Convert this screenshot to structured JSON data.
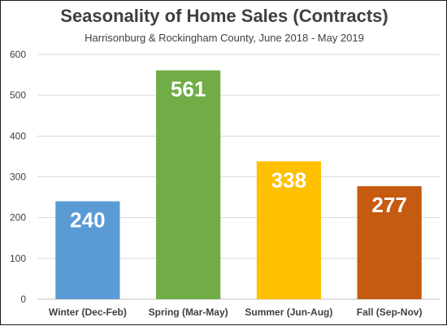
{
  "chart_data": {
    "type": "bar",
    "title": "Seasonality of Home Sales (Contracts)",
    "subtitle": "Harrisonburg & Rockingham County, June 2018 - May 2019",
    "categories": [
      "Winter (Dec-Feb)",
      "Spring (Mar-May)",
      "Summer (Jun-Aug)",
      "Fall (Sep-Nov)"
    ],
    "values": [
      240,
      561,
      338,
      277
    ],
    "colors": [
      "#5b9bd5",
      "#70ad47",
      "#ffc000",
      "#c55a11"
    ],
    "ylim": [
      0,
      600
    ],
    "yticks": [
      "0",
      "100",
      "200",
      "300",
      "400",
      "500",
      "600"
    ],
    "grid": true,
    "legend": "none"
  }
}
